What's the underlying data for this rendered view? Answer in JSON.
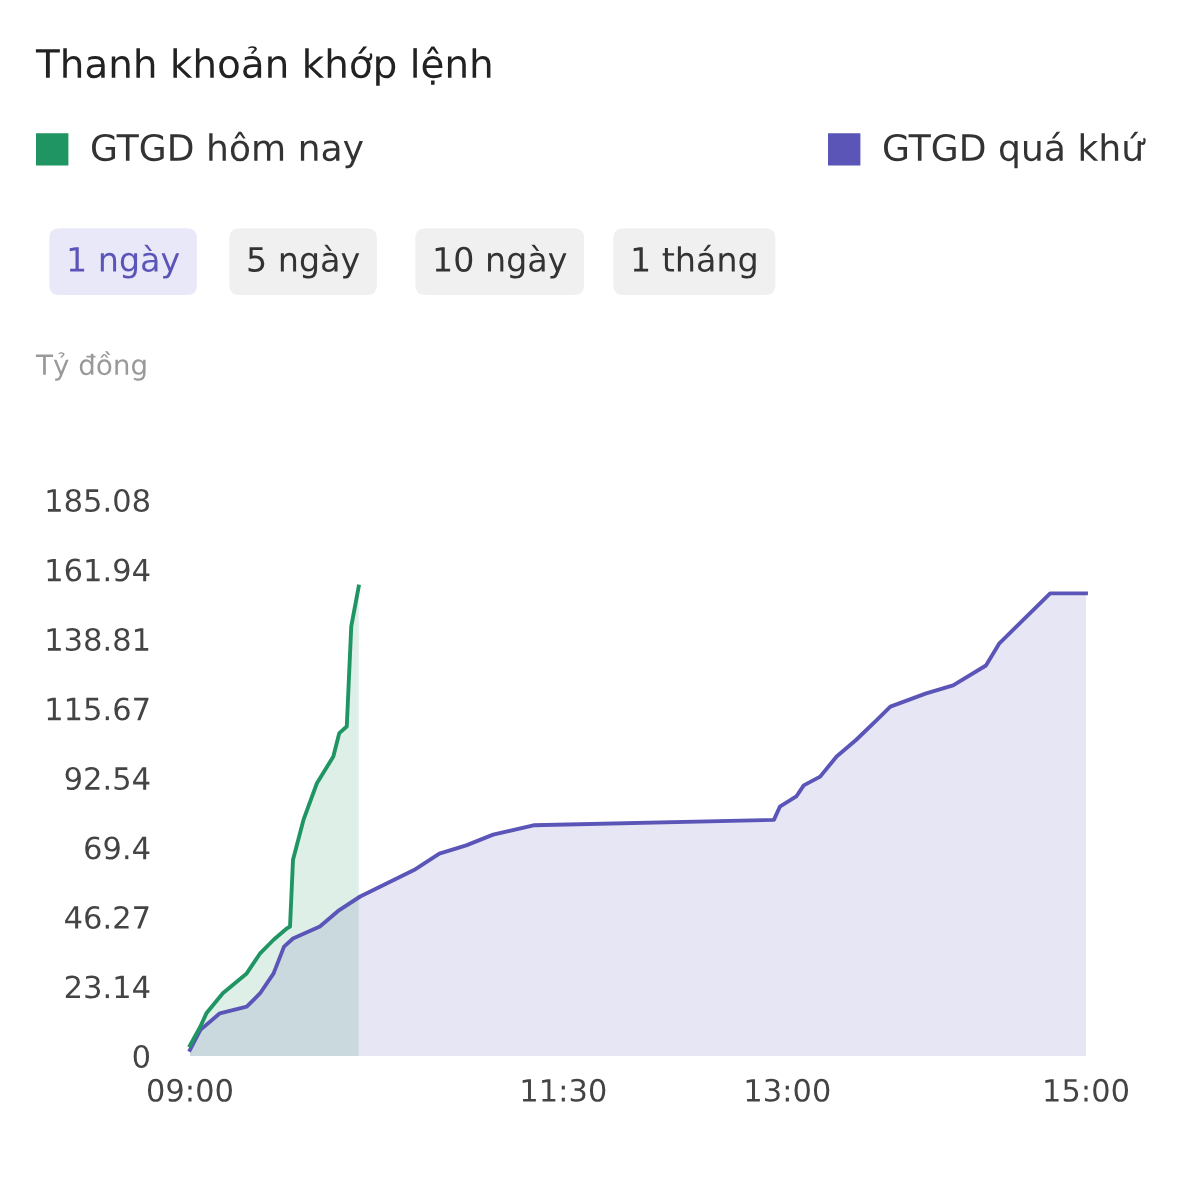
{
  "chart_data": {
    "type": "area",
    "title": "Thanh khoản khớp lệnh",
    "ylabel": "Tỷ đồng",
    "annotations": [
      "1 ngày",
      "5 ngày",
      "10 ngày",
      "1 tháng"
    ],
    "legend": "top",
    "grid": false,
    "xlim": [
      9,
      15
    ],
    "xticks": [
      {
        "value": 9,
        "label": "09:00"
      },
      {
        "value": 11.5,
        "label": "11:30"
      },
      {
        "value": 13,
        "label": "13:00"
      },
      {
        "value": 15,
        "label": "15:00"
      }
    ],
    "ylim": [
      0,
      185.08
    ],
    "yticks": [
      0,
      23.14,
      46.27,
      69.4,
      92.54,
      115.67,
      138.81,
      161.94,
      185.08
    ],
    "series": [
      {
        "name": "GTGD hôm nay",
        "color": "#1f9563",
        "x": [
          9.0,
          9.07,
          9.11,
          9.22,
          9.38,
          9.47,
          9.56,
          9.65,
          9.67,
          9.69,
          9.76,
          9.85,
          9.96,
          10.0,
          10.05,
          10.08,
          10.13
        ],
        "values": [
          3.5,
          9.8,
          14.2,
          20.9,
          27.5,
          34.2,
          38.7,
          42.5,
          43.1,
          65.3,
          78.6,
          90.8,
          99.7,
          107.5,
          109.7,
          143.0,
          156.3
        ]
      },
      {
        "name": "GTGD quá khứ",
        "color": "#5b55b8",
        "x": [
          9.0,
          9.07,
          9.2,
          9.38,
          9.47,
          9.56,
          9.63,
          9.69,
          9.87,
          10.0,
          10.14,
          10.32,
          10.5,
          10.67,
          10.85,
          11.03,
          11.3,
          12.91,
          12.95,
          13.06,
          13.11,
          13.22,
          13.33,
          13.46,
          13.6,
          13.69,
          13.93,
          14.11,
          14.33,
          14.42,
          14.76,
          15.0
        ],
        "values": [
          2.0,
          8.7,
          14.2,
          16.4,
          20.9,
          27.5,
          36.4,
          39.1,
          43.1,
          48.6,
          53.1,
          57.5,
          61.9,
          67.4,
          70.1,
          73.7,
          76.8,
          78.6,
          83.0,
          86.4,
          90.1,
          93.0,
          99.7,
          105.2,
          111.9,
          116.3,
          120.7,
          123.4,
          130.0,
          137.4,
          154.0,
          154.0
        ]
      }
    ]
  }
}
